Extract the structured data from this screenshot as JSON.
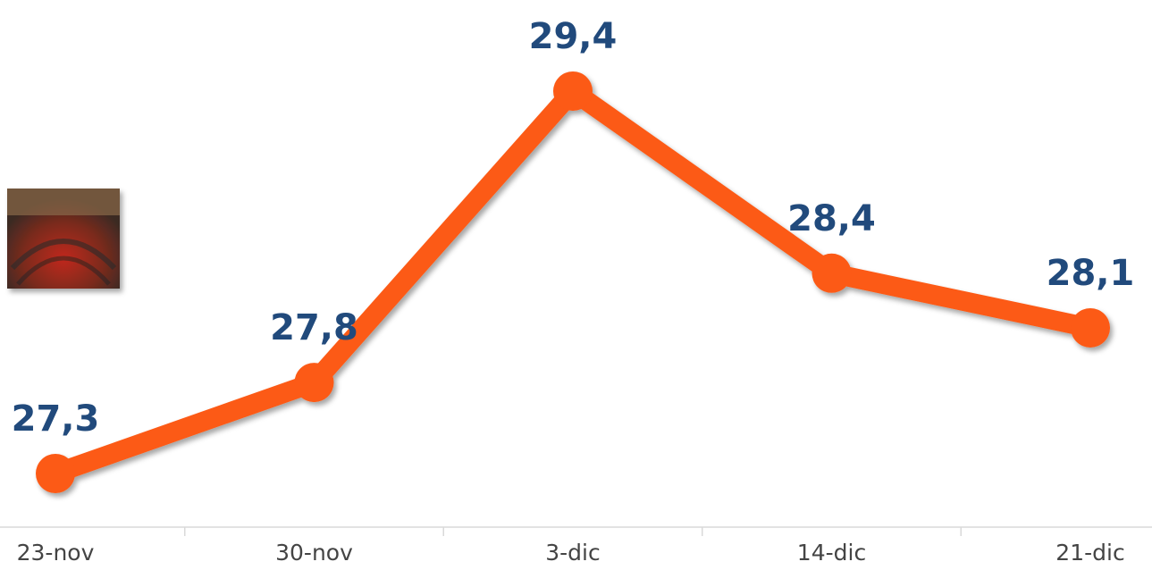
{
  "chart_data": {
    "type": "line",
    "categories": [
      "23-nov",
      "30-nov",
      "3-dic",
      "14-dic",
      "21-dic"
    ],
    "series": [
      {
        "color": "#fc5a14",
        "values": [
          27.3,
          27.8,
          29.4,
          28.4,
          28.1
        ],
        "value_labels": [
          "27,3",
          "27,8",
          "29,4",
          "28,4",
          "28,1"
        ]
      }
    ]
  }
}
